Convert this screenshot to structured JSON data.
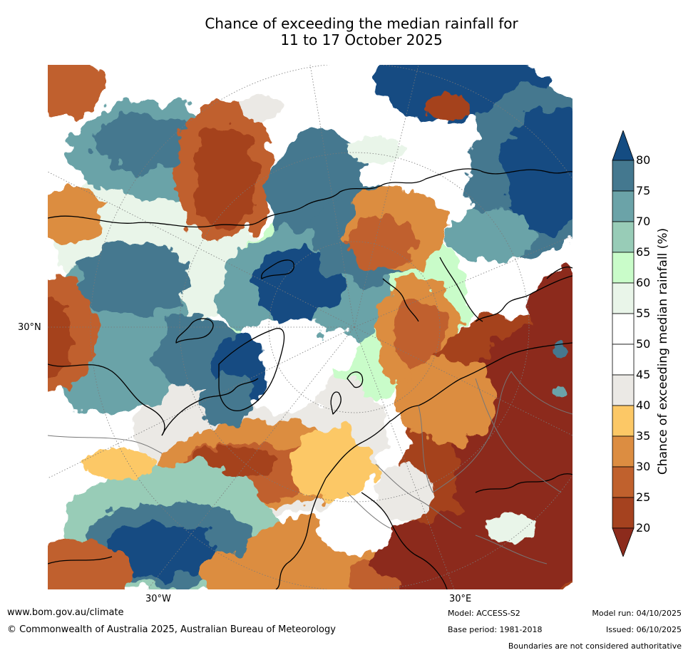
{
  "title": {
    "line1": "Chance of exceeding the median rainfall for",
    "line2": "11 to 17 October 2025"
  },
  "map": {
    "projection": "north polar stereographic",
    "lat_label": "30°N",
    "lon_labels": [
      "30°W",
      "30°E"
    ]
  },
  "colorbar": {
    "label": "Chance of exceeding median rainfall (%)",
    "ticks": [
      "20",
      "25",
      "30",
      "35",
      "40",
      "45",
      "50",
      "55",
      "60",
      "65",
      "70",
      "75",
      "80"
    ],
    "colors": [
      "#8c2b1c",
      "#a5421f",
      "#c0612d",
      "#dc8d41",
      "#fcc866",
      "#ebe9e5",
      "#ffffff",
      "#ffffff",
      "#e9f5e9",
      "#c9fcc9",
      "#98ccb7",
      "#6ba3a8",
      "#44788f",
      "#144c82"
    ],
    "extend": "both"
  },
  "footer": {
    "website": "www.bom.gov.au/climate",
    "copyright": "© Commonwealth of Australia 2025, Australian Bureau of Meteorology",
    "model": "Model: ACCESS-S2",
    "base_period": "Base period: 1981-2018",
    "model_run": "Model run: 04/10/2025",
    "issued": "Issued: 06/10/2025",
    "disclaimer": "Boundaries are not considered authoritative"
  }
}
